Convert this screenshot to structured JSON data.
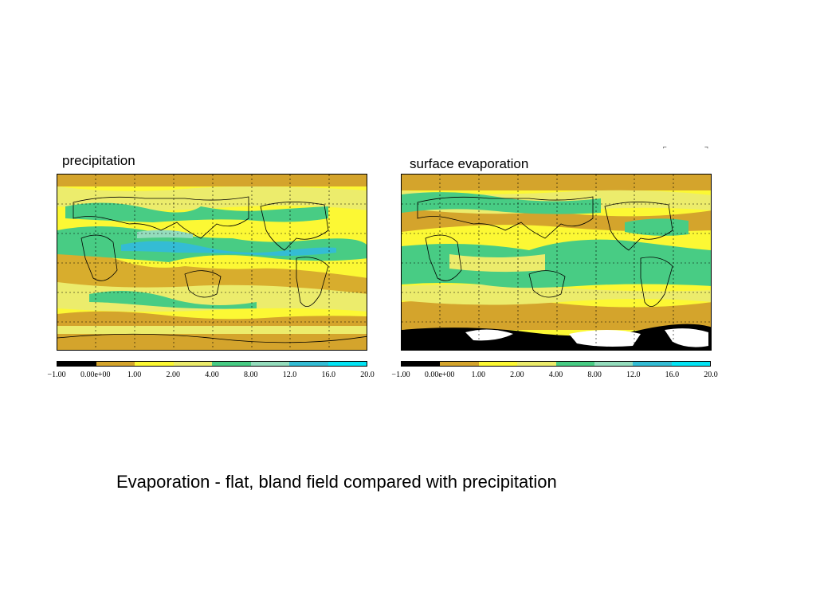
{
  "panels": [
    {
      "title": "precipitation",
      "variant": "precip"
    },
    {
      "title": "surface evaporation",
      "variant": "evap"
    }
  ],
  "colorbar": {
    "ticks": [
      "−1.00",
      "0.00e+00",
      "1.00",
      "2.00",
      "4.00",
      "8.00",
      "12.0",
      "16.0",
      "20.0"
    ],
    "colors": [
      "#000000",
      "#d4a42c",
      "#fcf834",
      "#ecec6c",
      "#48cc84",
      "#94dcbc",
      "#34bcd4",
      "#04e4f4"
    ]
  },
  "caption": "Evaporation - flat, bland field compared with precipitation",
  "colors": {
    "dry": "#d4a42c",
    "low": "#fcf834",
    "mid": "#ecec6c",
    "green": "#48cc84",
    "lightgreen": "#94dcbc",
    "blue": "#34bcd4",
    "cyan": "#04e4f4",
    "black": "#000000",
    "white": "#ffffff"
  }
}
